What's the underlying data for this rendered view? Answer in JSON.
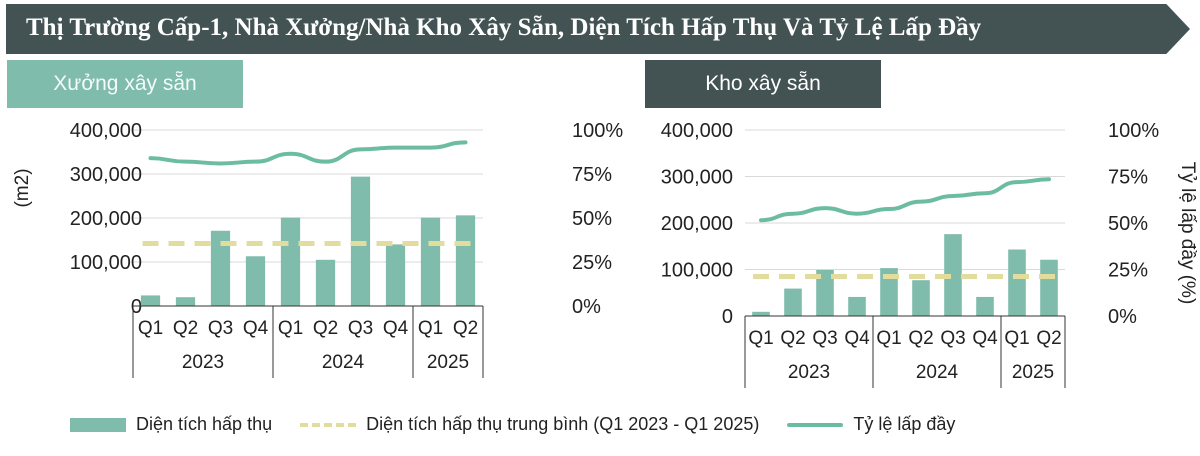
{
  "title": "Thị Trường Cấp-1, Nhà Xưởng/Nhà Kho Xây Sẵn, Diện Tích Hấp Thụ Và Tỷ Lệ Lấp Đầy",
  "colors": {
    "bar": "#7fbcab",
    "line": "#6cbca3",
    "average": "#e2dd9c",
    "header": "#435354"
  },
  "legend": {
    "bar": "Diện tích hấp thụ",
    "average": "Diện tích hấp thụ trung bình (Q1 2023 - Q1 2025)",
    "line": "Tỷ lệ lấp đầy"
  },
  "chart_data": [
    {
      "type": "bar",
      "panel_label": "Xưởng xây sẵn",
      "ylabel": "(m2)",
      "y2label": "",
      "ylim": [
        0,
        400000
      ],
      "y2lim": [
        0,
        100
      ],
      "yticks": [
        "0",
        "100,000",
        "200,000",
        "300,000",
        "400,000"
      ],
      "y2ticks": [
        "0%",
        "25%",
        "50%",
        "75%",
        "100%"
      ],
      "categories": [
        "Q1",
        "Q2",
        "Q3",
        "Q4",
        "Q1",
        "Q2",
        "Q3",
        "Q4",
        "Q1",
        "Q2"
      ],
      "groups": [
        {
          "label": "2023",
          "count": 4
        },
        {
          "label": "2024",
          "count": 4
        },
        {
          "label": "2025",
          "count": 2
        }
      ],
      "series": [
        {
          "name": "Diện tích hấp thụ",
          "type": "bar",
          "values": [
            24000,
            20000,
            171000,
            113000,
            201000,
            105000,
            294000,
            140000,
            201000,
            206000
          ]
        },
        {
          "name": "Diện tích hấp thụ trung bình (Q1 2023 - Q1 2025)",
          "type": "dashed",
          "value": 142000
        },
        {
          "name": "Tỷ lệ lấp đầy",
          "type": "line",
          "axis": "right",
          "values": [
            84,
            82,
            81,
            82,
            86.5,
            82,
            89,
            90,
            90,
            93
          ]
        }
      ],
      "grid": true
    },
    {
      "type": "bar",
      "panel_label": "Kho xây sẵn",
      "ylabel": "",
      "y2label": "Tỷ lệ lấp đầy (%)",
      "ylim": [
        0,
        400000
      ],
      "y2lim": [
        0,
        100
      ],
      "yticks": [
        "0",
        "100,000",
        "200,000",
        "300,000",
        "400,000"
      ],
      "y2ticks": [
        "0%",
        "25%",
        "50%",
        "75%",
        "100%"
      ],
      "categories": [
        "Q1",
        "Q2",
        "Q3",
        "Q4",
        "Q1",
        "Q2",
        "Q3",
        "Q4",
        "Q1",
        "Q2"
      ],
      "groups": [
        {
          "label": "2023",
          "count": 4
        },
        {
          "label": "2024",
          "count": 4
        },
        {
          "label": "2025",
          "count": 2
        }
      ],
      "series": [
        {
          "name": "Diện tích hấp thụ",
          "type": "bar",
          "values": [
            9000,
            59000,
            99000,
            41000,
            103000,
            77000,
            176000,
            41000,
            143000,
            121000
          ]
        },
        {
          "name": "Diện tích hấp thụ trung bình (Q1 2023 - Q1 2025)",
          "type": "dashed",
          "value": 85000
        },
        {
          "name": "Tỷ lệ lấp đầy",
          "type": "line",
          "axis": "right",
          "values": [
            51.5,
            55,
            58,
            55,
            57.5,
            61.5,
            64.5,
            66,
            72,
            73.5
          ]
        }
      ],
      "grid": true
    }
  ]
}
